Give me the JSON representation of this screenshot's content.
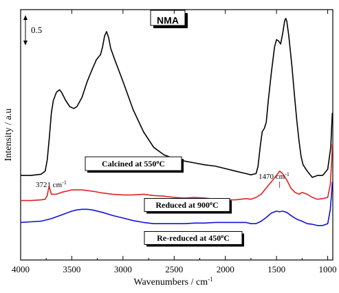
{
  "chart_data": {
    "type": "line",
    "title": "NMA",
    "xlabel": "Wavenumbers / cm⁻¹",
    "ylabel": "Intensity / a.u",
    "xlim": [
      4000,
      950
    ],
    "x_ticks": [
      4000,
      3500,
      3000,
      2500,
      2000,
      1500,
      1000
    ],
    "scale_bar_label": "0.5",
    "grid": false,
    "series": [
      {
        "color": "#000000",
        "label_text": "Calcined at 550°C",
        "points": [
          [
            4000,
            1.35
          ],
          [
            3900,
            1.35
          ],
          [
            3800,
            1.37
          ],
          [
            3760,
            1.42
          ],
          [
            3740,
            1.6
          ],
          [
            3720,
            1.95
          ],
          [
            3700,
            2.35
          ],
          [
            3680,
            2.55
          ],
          [
            3650,
            2.68
          ],
          [
            3620,
            2.72
          ],
          [
            3600,
            2.68
          ],
          [
            3560,
            2.55
          ],
          [
            3520,
            2.45
          ],
          [
            3480,
            2.42
          ],
          [
            3450,
            2.45
          ],
          [
            3400,
            2.6
          ],
          [
            3350,
            2.85
          ],
          [
            3300,
            3.05
          ],
          [
            3260,
            3.2
          ],
          [
            3220,
            3.28
          ],
          [
            3200,
            3.4
          ],
          [
            3180,
            3.58
          ],
          [
            3160,
            3.65
          ],
          [
            3140,
            3.55
          ],
          [
            3120,
            3.38
          ],
          [
            3080,
            3.2
          ],
          [
            3000,
            2.85
          ],
          [
            2900,
            2.4
          ],
          [
            2800,
            2.05
          ],
          [
            2700,
            1.8
          ],
          [
            2600,
            1.68
          ],
          [
            2500,
            1.62
          ],
          [
            2400,
            1.58
          ],
          [
            2300,
            1.55
          ],
          [
            2200,
            1.52
          ],
          [
            2100,
            1.5
          ],
          [
            2000,
            1.46
          ],
          [
            1900,
            1.42
          ],
          [
            1800,
            1.38
          ],
          [
            1750,
            1.36
          ],
          [
            1700,
            1.38
          ],
          [
            1680,
            1.5
          ],
          [
            1660,
            1.8
          ],
          [
            1640,
            2.05
          ],
          [
            1620,
            2.1
          ],
          [
            1600,
            2.2
          ],
          [
            1580,
            2.55
          ],
          [
            1550,
            3.0
          ],
          [
            1520,
            3.4
          ],
          [
            1500,
            3.52
          ],
          [
            1480,
            3.5
          ],
          [
            1460,
            3.45
          ],
          [
            1440,
            3.62
          ],
          [
            1420,
            3.82
          ],
          [
            1410,
            3.86
          ],
          [
            1400,
            3.82
          ],
          [
            1380,
            3.58
          ],
          [
            1350,
            3.1
          ],
          [
            1320,
            2.55
          ],
          [
            1300,
            2.2
          ],
          [
            1280,
            1.9
          ],
          [
            1260,
            1.65
          ],
          [
            1240,
            1.52
          ],
          [
            1200,
            1.42
          ],
          [
            1150,
            1.32
          ],
          [
            1100,
            1.35
          ],
          [
            1050,
            1.35
          ],
          [
            1000,
            1.45
          ],
          [
            970,
            1.8
          ],
          [
            955,
            2.35
          ]
        ]
      },
      {
        "color": "#e02020",
        "label_text": "Reduced at 900°C",
        "points": [
          [
            4000,
            0.95
          ],
          [
            3900,
            0.95
          ],
          [
            3800,
            0.96
          ],
          [
            3760,
            0.97
          ],
          [
            3740,
            1.03
          ],
          [
            3730,
            1.12
          ],
          [
            3721,
            1.17
          ],
          [
            3712,
            1.12
          ],
          [
            3700,
            1.05
          ],
          [
            3650,
            1.05
          ],
          [
            3600,
            1.08
          ],
          [
            3500,
            1.12
          ],
          [
            3400,
            1.12
          ],
          [
            3300,
            1.1
          ],
          [
            3200,
            1.07
          ],
          [
            3100,
            1.05
          ],
          [
            3000,
            1.04
          ],
          [
            2900,
            1.04
          ],
          [
            2800,
            1.05
          ],
          [
            2700,
            1.03
          ],
          [
            2600,
            1.02
          ],
          [
            2500,
            1.0
          ],
          [
            2400,
            0.99
          ],
          [
            2300,
            1.0
          ],
          [
            2200,
            0.99
          ],
          [
            2100,
            0.97
          ],
          [
            2000,
            0.96
          ],
          [
            1900,
            0.96
          ],
          [
            1800,
            0.98
          ],
          [
            1750,
            0.97
          ],
          [
            1700,
            1.0
          ],
          [
            1650,
            1.05
          ],
          [
            1600,
            1.15
          ],
          [
            1550,
            1.25
          ],
          [
            1500,
            1.35
          ],
          [
            1470,
            1.42
          ],
          [
            1440,
            1.38
          ],
          [
            1400,
            1.28
          ],
          [
            1360,
            1.15
          ],
          [
            1320,
            1.08
          ],
          [
            1280,
            1.05
          ],
          [
            1250,
            1.08
          ],
          [
            1200,
            1.05
          ],
          [
            1150,
            1.0
          ],
          [
            1100,
            0.97
          ],
          [
            1050,
            0.98
          ],
          [
            1000,
            1.0
          ],
          [
            975,
            1.2
          ],
          [
            960,
            1.6
          ],
          [
            955,
            1.85
          ]
        ]
      },
      {
        "color": "#1010dd",
        "label_text": "Re-reduced at 450°C",
        "points": [
          [
            4000,
            0.6
          ],
          [
            3900,
            0.61
          ],
          [
            3800,
            0.62
          ],
          [
            3700,
            0.66
          ],
          [
            3600,
            0.72
          ],
          [
            3500,
            0.78
          ],
          [
            3450,
            0.8
          ],
          [
            3400,
            0.81
          ],
          [
            3350,
            0.81
          ],
          [
            3300,
            0.8
          ],
          [
            3200,
            0.76
          ],
          [
            3100,
            0.71
          ],
          [
            3000,
            0.67
          ],
          [
            2900,
            0.63
          ],
          [
            2800,
            0.6
          ],
          [
            2700,
            0.58
          ],
          [
            2600,
            0.58
          ],
          [
            2500,
            0.58
          ],
          [
            2400,
            0.58
          ],
          [
            2300,
            0.59
          ],
          [
            2200,
            0.59
          ],
          [
            2100,
            0.6
          ],
          [
            2000,
            0.6
          ],
          [
            1900,
            0.6
          ],
          [
            1800,
            0.6
          ],
          [
            1750,
            0.58
          ],
          [
            1700,
            0.58
          ],
          [
            1650,
            0.62
          ],
          [
            1600,
            0.68
          ],
          [
            1550,
            0.75
          ],
          [
            1500,
            0.78
          ],
          [
            1470,
            0.77
          ],
          [
            1440,
            0.78
          ],
          [
            1400,
            0.76
          ],
          [
            1350,
            0.7
          ],
          [
            1300,
            0.65
          ],
          [
            1250,
            0.62
          ],
          [
            1200,
            0.58
          ],
          [
            1150,
            0.57
          ],
          [
            1100,
            0.55
          ],
          [
            1050,
            0.55
          ],
          [
            1000,
            0.58
          ],
          [
            975,
            0.8
          ],
          [
            960,
            1.1
          ],
          [
            955,
            1.25
          ]
        ]
      }
    ],
    "annotations": [
      {
        "base": "3721 cm",
        "sup": "-1",
        "near_x": 3721
      },
      {
        "base": "1470 cm",
        "sup": "-1",
        "near_x": 1470
      }
    ]
  }
}
